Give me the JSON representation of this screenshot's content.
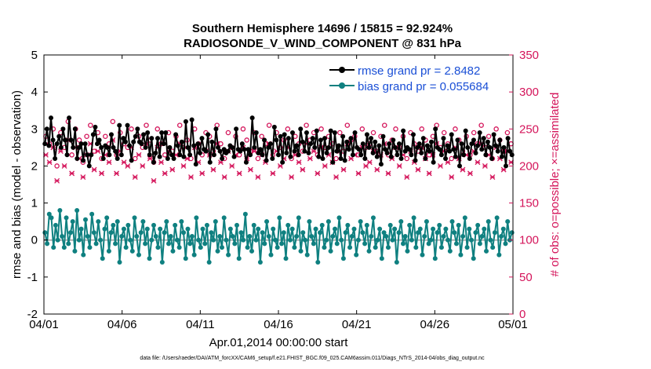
{
  "chart_data": {
    "type": "line",
    "title_line1": "Southern Hemisphere 14696 / 15815 = 92.924%",
    "title_line2": "RADIOSONDE_V_WIND_COMPONENT @ 831 hPa",
    "xlabel": "Apr.01,2014 00:00:00 start",
    "ylabel_left": "rmse and bias (model - observation)",
    "ylabel_right": "# of obs: o=possible; ×=assimilated",
    "footnote": "data file: /Users/raeder/DAI/ATM_forcXX/CAM6_setup/f.e21.FHIST_BGC.f09_025.CAM6assim.011/Diags_NTrS_2014-04/obs_diag_output.nc",
    "x_ticks": [
      "04/01",
      "04/06",
      "04/11",
      "04/16",
      "04/21",
      "04/26",
      "05/01"
    ],
    "y_left_ticks": [
      "-2",
      "-1",
      "0",
      "1",
      "2",
      "3",
      "4",
      "5"
    ],
    "y_right_ticks": [
      "0",
      "50",
      "100",
      "150",
      "200",
      "250",
      "300",
      "350"
    ],
    "xlim_days": [
      0,
      30
    ],
    "ylim_left": [
      -2,
      5
    ],
    "ylim_right": [
      0,
      350
    ],
    "colors": {
      "rmse": "#000000",
      "bias": "#0f8080",
      "obs": "#d4145a",
      "legend_text": "#1a4fd6",
      "zero_line": "#b0b0b0"
    },
    "series": [
      {
        "name": "rmse grand pr = 2.8482",
        "axis": "left",
        "values": [
          2.6,
          3.0,
          2.55,
          3.3,
          2.7,
          2.2,
          2.6,
          2.8,
          2.5,
          3.0,
          2.7,
          2.3,
          3.3,
          2.7,
          2.5,
          3.0,
          2.2,
          2.5,
          2.6,
          2.15,
          2.6,
          2.3,
          2.0,
          2.3,
          2.85,
          3.05,
          2.6,
          2.7,
          2.5,
          2.2,
          2.55,
          2.5,
          2.3,
          2.85,
          2.5,
          2.4,
          2.2,
          3.1,
          2.3,
          2.75,
          2.65,
          3.1,
          2.55,
          2.15,
          2.65,
          2.8,
          3.0,
          2.65,
          2.6,
          2.85,
          2.5,
          2.9,
          2.3,
          2.75,
          2.1,
          2.35,
          2.75,
          2.25,
          2.9,
          2.6,
          2.9,
          2.2,
          2.5,
          2.3,
          2.2,
          2.85,
          2.55,
          2.3,
          2.65,
          2.25,
          3.2,
          2.5,
          2.3,
          3.25,
          2.55,
          2.05,
          2.6,
          2.35,
          2.75,
          2.45,
          2.4,
          2.85,
          2.1,
          2.65,
          2.3,
          3.0,
          2.5,
          2.4,
          2.2,
          2.45,
          2.35,
          2.4,
          2.55,
          2.5,
          2.25,
          3.0,
          2.45,
          2.4,
          2.6,
          2.45,
          2.1,
          2.45,
          2.3,
          3.3,
          2.5,
          2.9,
          2.35,
          2.45,
          2.3,
          2.7,
          2.15,
          2.5,
          2.6,
          2.2,
          3.05,
          2.7,
          2.3,
          2.8,
          2.1,
          2.85,
          2.35,
          2.75,
          2.25,
          2.9,
          2.4,
          2.55,
          2.3,
          3.0,
          2.65,
          2.4,
          2.9,
          2.35,
          2.6,
          2.75,
          2.5,
          2.95,
          2.25,
          2.7,
          2.2,
          2.75,
          2.35,
          2.5,
          2.95,
          2.1,
          2.9,
          2.4,
          2.55,
          2.2,
          2.8,
          2.15,
          2.65,
          2.45,
          2.75,
          2.3,
          2.9,
          2.5,
          2.45,
          2.3,
          2.6,
          2.2,
          2.85,
          2.5,
          2.75,
          2.35,
          2.65,
          2.25,
          2.55,
          2.05,
          2.8,
          2.45,
          2.35,
          2.6,
          2.25,
          2.7,
          2.5,
          2.3,
          2.6,
          2.2,
          2.95,
          2.4,
          2.5,
          2.45,
          2.3,
          2.85,
          2.15,
          2.5,
          2.6,
          2.35,
          2.75,
          2.2,
          2.55,
          2.4,
          2.65,
          2.1,
          3.0,
          2.5,
          2.45,
          2.3,
          2.75,
          2.2,
          2.55,
          2.4,
          2.85,
          2.45,
          2.25,
          2.7,
          2.0,
          2.6,
          2.3,
          2.95,
          2.5,
          2.2,
          2.6,
          2.7,
          2.35,
          2.55,
          2.9,
          2.45,
          2.75,
          2.3,
          2.65,
          2.5,
          2.2,
          2.85,
          2.55,
          2.4,
          2.7,
          2.25,
          2.5,
          2.0,
          2.75,
          2.4,
          2.3
        ]
      },
      {
        "name": "bias grand pr = 0.055684",
        "axis": "left",
        "values": [
          0.2,
          -0.1,
          0.7,
          0.6,
          -0.2,
          0.4,
          0.0,
          0.8,
          0.1,
          -0.2,
          0.6,
          -0.1,
          0.2,
          0.5,
          -0.3,
          0.8,
          0.0,
          0.3,
          -0.4,
          0.55,
          0.1,
          -0.2,
          0.7,
          0.2,
          -0.1,
          0.5,
          0.0,
          -0.5,
          0.3,
          0.6,
          -0.3,
          0.2,
          0.4,
          -0.1,
          0.5,
          -0.6,
          0.1,
          0.3,
          -0.2,
          0.4,
          0.0,
          -0.3,
          0.6,
          0.1,
          -0.4,
          0.2,
          0.5,
          -0.1,
          0.3,
          -0.5,
          0.0,
          0.4,
          0.1,
          -0.2,
          0.3,
          -0.6,
          0.2,
          0.5,
          -0.1,
          0.1,
          -0.3,
          0.4,
          0.0,
          -0.2,
          0.5,
          0.2,
          -0.5,
          0.3,
          -0.1,
          0.1,
          -0.4,
          0.6,
          0.0,
          -0.2,
          0.3,
          -0.1,
          0.4,
          -0.6,
          0.2,
          0.0,
          0.5,
          -0.3,
          0.1,
          -0.2,
          0.6,
          0.0,
          -0.4,
          0.3,
          0.1,
          -0.1,
          0.4,
          -0.5,
          0.2,
          0.0,
          0.7,
          -0.2,
          0.1,
          -0.3,
          0.4,
          0.0,
          0.3,
          -0.6,
          0.2,
          -0.1,
          0.5,
          0.1,
          -0.4,
          0.3,
          0.0,
          -0.2,
          0.6,
          -0.1,
          0.2,
          -0.5,
          0.4,
          0.0,
          0.3,
          -0.2,
          0.1,
          0.6,
          -0.3,
          0.2,
          0.0,
          -0.4,
          0.5,
          0.1,
          -0.1,
          0.3,
          -0.6,
          0.2,
          0.4,
          -0.2,
          0.0,
          0.5,
          -0.3,
          0.1,
          0.3,
          -0.1,
          0.6,
          0.0,
          -0.5,
          0.2,
          0.4,
          -0.2,
          0.1,
          0.3,
          -0.4,
          0.0,
          0.5,
          0.2,
          -0.1,
          0.4,
          -0.3,
          0.1,
          0.6,
          -0.2,
          0.0,
          0.3,
          -0.5,
          0.2,
          0.1,
          -0.2,
          0.4,
          0.0,
          0.3,
          -0.6,
          0.2,
          0.5,
          -0.1,
          0.1,
          -0.3,
          0.4,
          0.0,
          0.6,
          -0.2,
          0.2,
          0.3,
          -0.4,
          0.1,
          0.5,
          -0.1,
          0.0,
          0.3,
          -0.5,
          0.2,
          0.4,
          -0.2,
          0.1,
          0.3,
          0.0,
          -0.3,
          0.5,
          0.2,
          -0.1,
          0.4,
          -0.4,
          0.1,
          0.6,
          -0.2,
          0.3,
          0.0,
          -0.5,
          0.2,
          0.4,
          -0.1,
          0.1,
          0.3,
          -0.3,
          0.5,
          0.0,
          -0.2,
          0.2,
          0.6,
          -0.4,
          0.1,
          0.3,
          -0.1,
          0.5,
          0.0,
          0.2
        ]
      },
      {
        "name": "possible",
        "axis": "right",
        "marker": "o",
        "values": [
          240,
          230,
          250,
          200,
          245,
          225,
          260,
          215,
          250,
          235,
          205,
          240,
          255,
          220,
          245,
          210,
          240,
          230,
          260,
          215,
          245,
          230,
          225,
          250,
          210,
          240,
          225,
          255,
          235,
          205,
          250,
          230,
          215,
          245,
          220,
          240,
          255,
          225,
          235,
          210,
          250,
          230,
          215,
          245,
          240,
          220,
          255,
          230,
          210,
          245,
          225,
          240,
          215,
          250,
          235,
          220,
          245,
          210,
          240,
          230,
          255,
          215,
          245,
          225,
          235,
          250,
          210,
          240,
          230,
          220,
          255,
          235,
          245,
          215,
          250,
          225,
          240,
          230,
          210,
          245,
          220,
          255,
          235,
          240,
          215,
          250,
          225,
          230,
          245,
          220,
          240,
          255,
          215,
          235,
          250,
          225,
          240,
          210,
          245,
          230,
          220,
          250,
          235,
          215,
          240,
          255,
          225,
          245,
          230,
          210,
          250,
          235,
          220,
          240,
          215,
          245,
          230,
          255,
          225,
          240,
          210,
          250,
          235,
          220,
          245,
          230
        ]
      },
      {
        "name": "assimilated",
        "axis": "right",
        "marker": "x",
        "values": [
          215,
          205,
          225,
          180,
          220,
          200,
          235,
          190,
          225,
          210,
          185,
          215,
          230,
          195,
          220,
          190,
          215,
          205,
          235,
          190,
          220,
          205,
          200,
          225,
          185,
          215,
          200,
          230,
          210,
          180,
          225,
          205,
          190,
          220,
          195,
          215,
          230,
          200,
          210,
          185,
          225,
          205,
          190,
          220,
          215,
          195,
          230,
          205,
          185,
          220,
          200,
          215,
          190,
          225,
          210,
          195,
          220,
          185,
          215,
          205,
          230,
          190,
          220,
          200,
          210,
          225,
          185,
          215,
          205,
          195,
          230,
          210,
          220,
          190,
          225,
          200,
          215,
          205,
          185,
          220,
          195,
          230,
          210,
          215,
          190,
          225,
          200,
          205,
          220,
          195,
          215,
          230,
          190,
          210,
          225,
          200,
          215,
          185,
          220,
          205,
          195,
          225,
          210,
          190,
          215,
          230,
          200,
          220,
          205,
          185,
          225,
          210,
          195,
          215,
          190,
          220,
          205,
          230,
          200,
          215,
          185,
          225,
          210,
          195,
          220,
          205
        ]
      }
    ]
  }
}
